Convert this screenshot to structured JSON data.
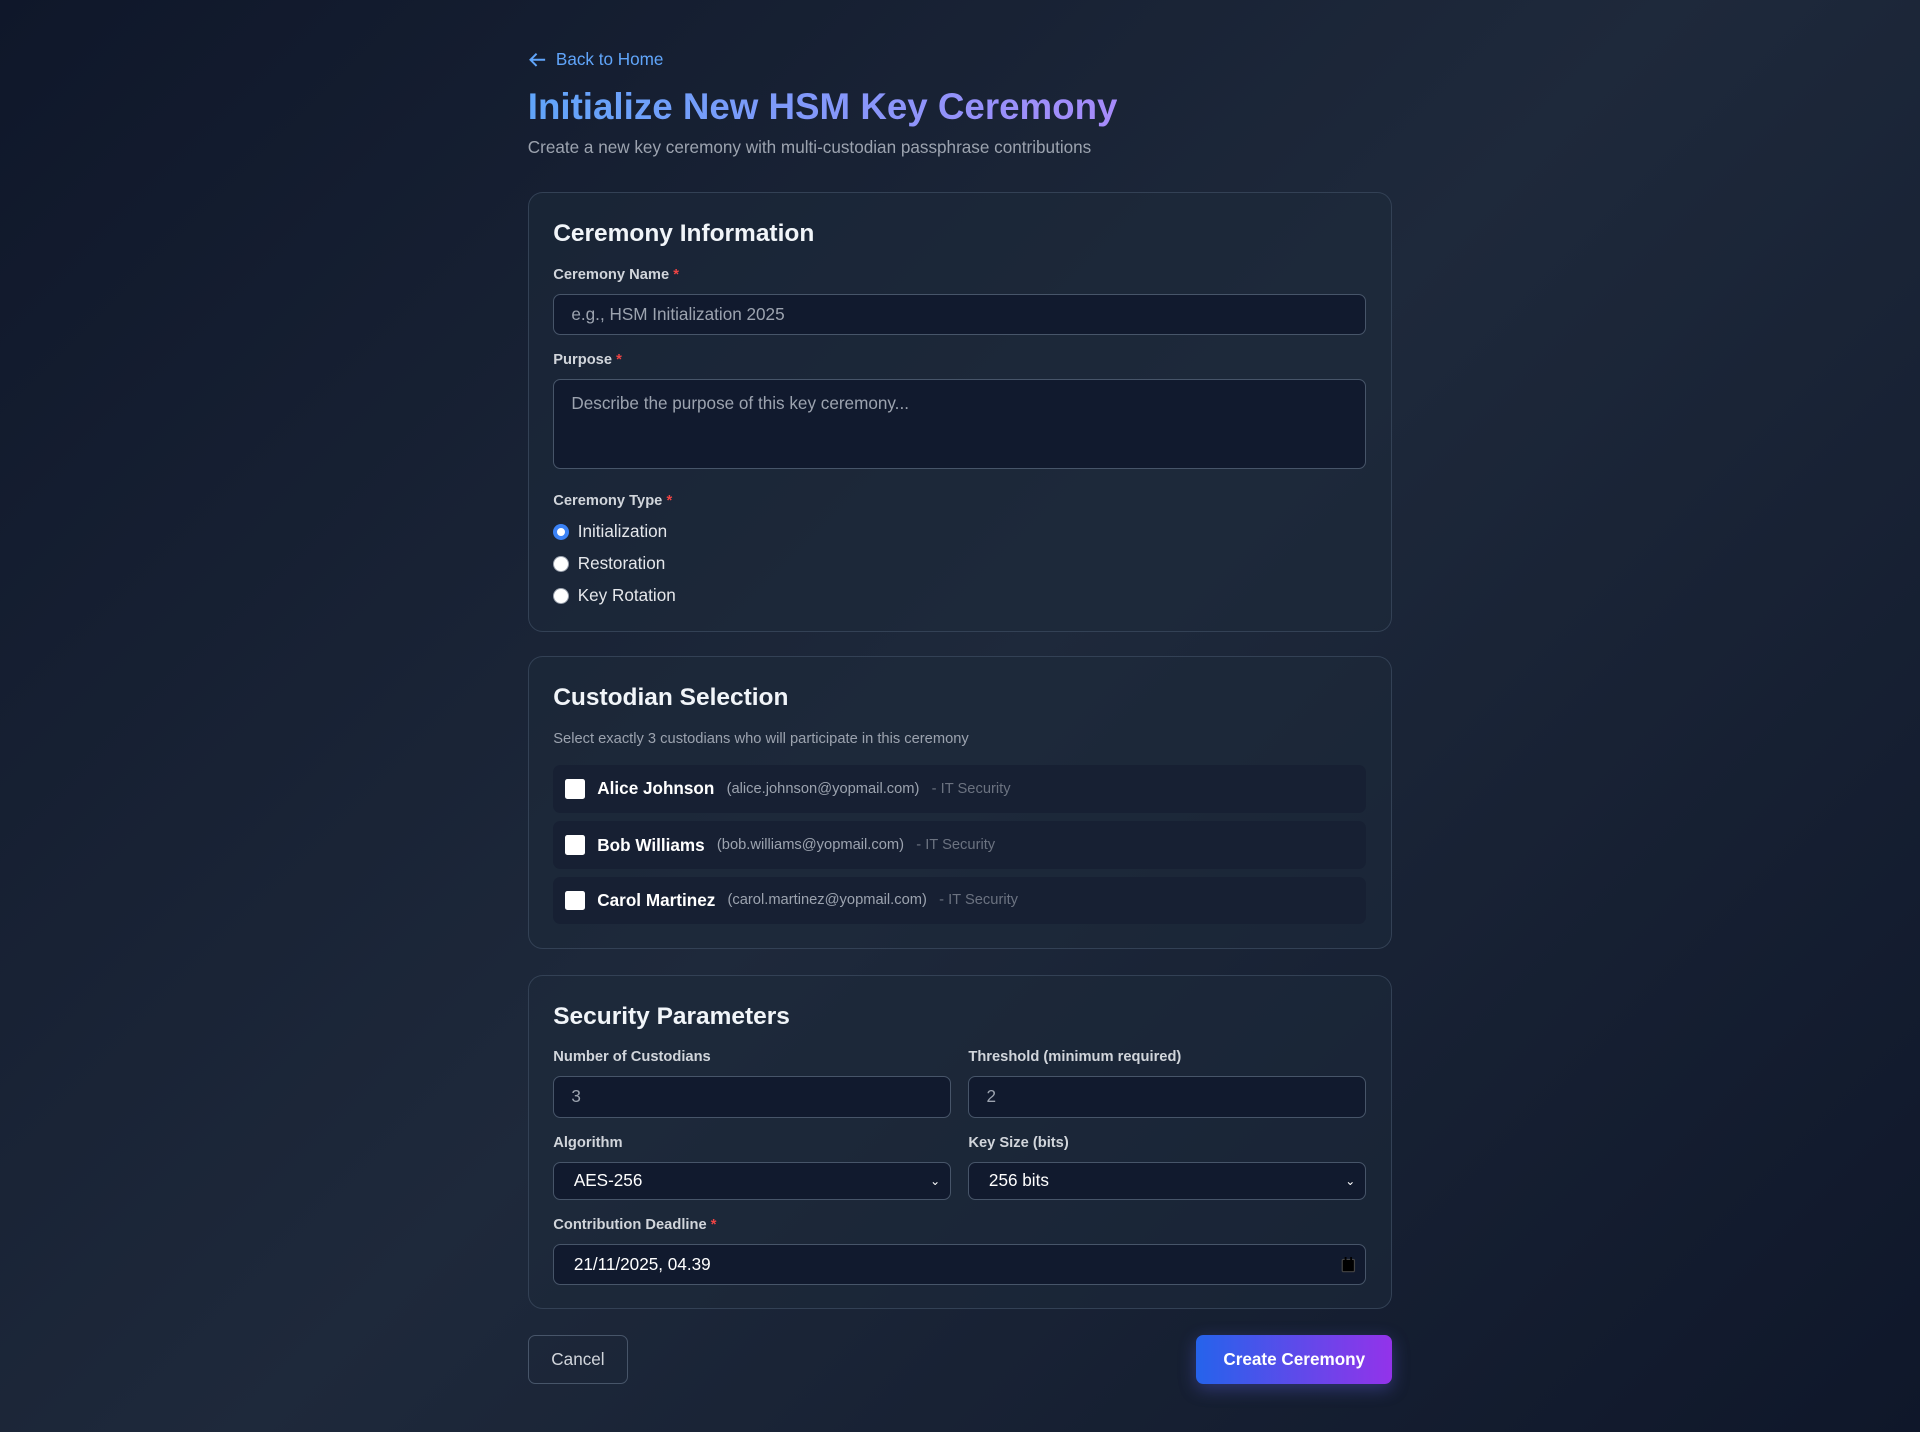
{
  "nav": {
    "back_label": "Back to Home"
  },
  "header": {
    "title": "Initialize New HSM Key Ceremony",
    "subtitle": "Create a new key ceremony with multi-custodian passphrase contributions"
  },
  "ceremony_info": {
    "heading": "Ceremony Information",
    "name_label": "Ceremony Name",
    "name_placeholder": "e.g., HSM Initialization 2025",
    "purpose_label": "Purpose",
    "purpose_placeholder": "Describe the purpose of this key ceremony...",
    "type_label": "Ceremony Type",
    "types": [
      {
        "label": "Initialization",
        "selected": true
      },
      {
        "label": "Restoration",
        "selected": false
      },
      {
        "label": "Key Rotation",
        "selected": false
      }
    ]
  },
  "custodians": {
    "heading": "Custodian Selection",
    "description": "Select exactly 3 custodians who will participate in this ceremony",
    "items": [
      {
        "name": "Alice Johnson",
        "email": "(alice.johnson@yopmail.com)",
        "dept": "- IT Security",
        "checked": false
      },
      {
        "name": "Bob Williams",
        "email": "(bob.williams@yopmail.com)",
        "dept": "- IT Security",
        "checked": false
      },
      {
        "name": "Carol Martinez",
        "email": "(carol.martinez@yopmail.com)",
        "dept": "- IT Security",
        "checked": false
      }
    ]
  },
  "security": {
    "heading": "Security Parameters",
    "num_label": "Number of Custodians",
    "num_value": "3",
    "threshold_label": "Threshold (minimum required)",
    "threshold_value": "2",
    "algorithm_label": "Algorithm",
    "algorithm_value": "AES-256",
    "keysize_label": "Key Size (bits)",
    "keysize_value": "256 bits",
    "deadline_label": "Contribution Deadline",
    "deadline_value": "21/11/2025, 04.39"
  },
  "actions": {
    "cancel": "Cancel",
    "create": "Create Ceremony"
  },
  "required_mark": "*",
  "colors": {
    "accent": "#3b82f6",
    "link": "#60a5fa",
    "create_gradient_start": "#2563eb",
    "create_gradient_end": "#9333ea"
  }
}
